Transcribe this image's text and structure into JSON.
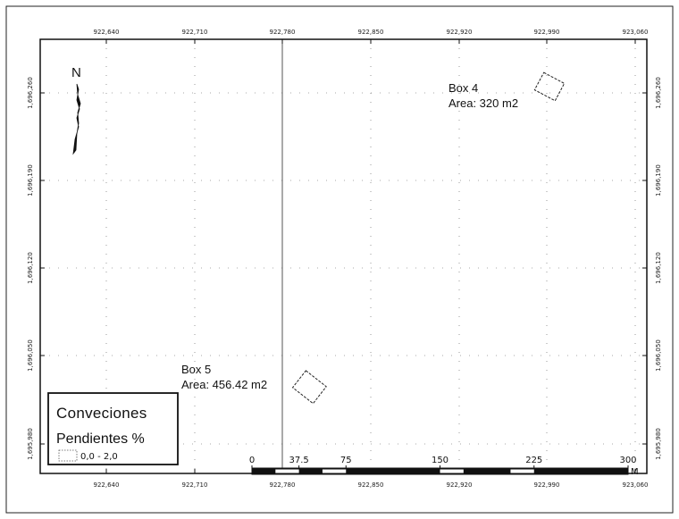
{
  "map": {
    "x_ticks": [
      "922,640",
      "922,710",
      "922,780",
      "922,850",
      "922,920",
      "922,990",
      "923,060"
    ],
    "y_ticks": [
      "1,696,260",
      "1,696,190",
      "1,696,120",
      "1,696,050",
      "1,695,980"
    ],
    "north_label": "N",
    "features": [
      {
        "name": "Box 4",
        "area": "Area: 320 m2"
      },
      {
        "name": "Box 5",
        "area": "Area: 456.42 m2"
      }
    ],
    "legend": {
      "title": "Conveciones",
      "subtitle": "Pendientes %",
      "items": [
        {
          "label": "0,0 - 2,0",
          "color": "#ffffff"
        }
      ]
    },
    "scale_bar": {
      "labels": [
        "0",
        "37.5",
        "75",
        "150",
        "225",
        "300"
      ],
      "unit": "M"
    },
    "colors": {
      "frame": "#111111",
      "grid": "#555555"
    }
  }
}
